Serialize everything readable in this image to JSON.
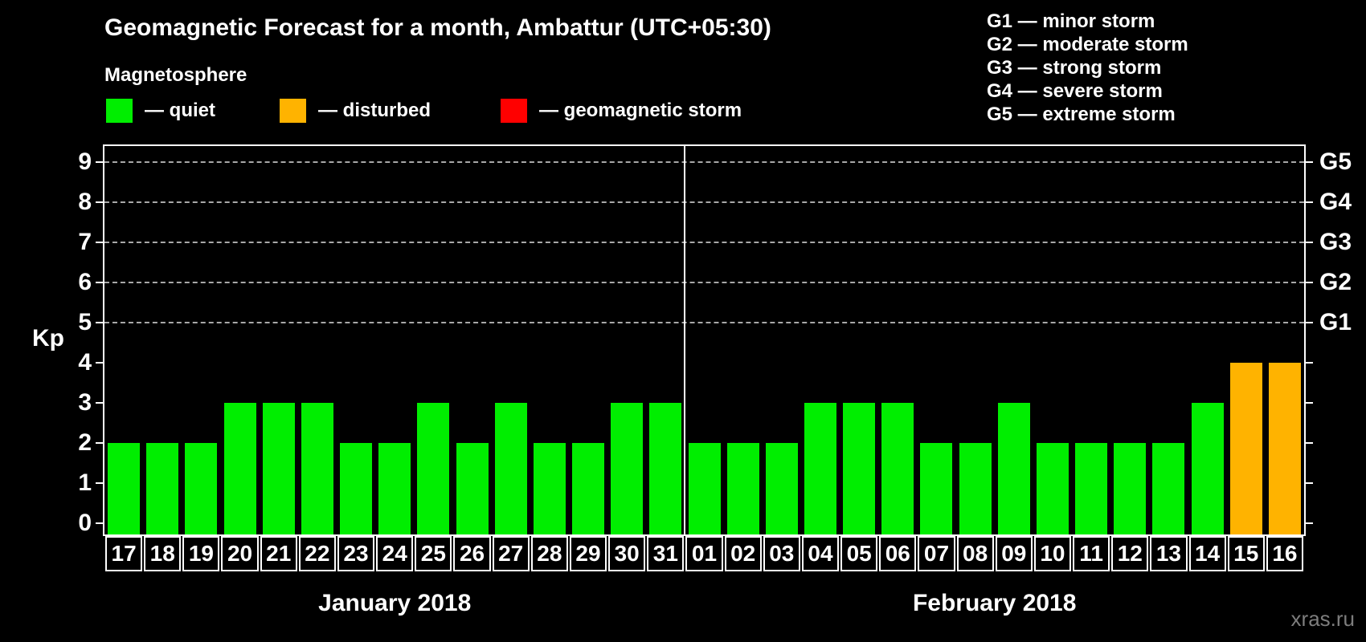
{
  "header": {
    "title": "Geomagnetic Forecast for a month, Ambattur (UTC+05:30)",
    "subtitle": "Magnetosphere"
  },
  "legend": {
    "items": [
      {
        "key": "quiet",
        "label": "— quiet",
        "color": "#00ee00"
      },
      {
        "key": "disturbed",
        "label": "— disturbed",
        "color": "#ffb300"
      },
      {
        "key": "storm",
        "label": "— geomagnetic storm",
        "color": "#ff0000"
      }
    ]
  },
  "g_scale_legend": {
    "items": [
      "G1 — minor storm",
      "G2 — moderate storm",
      "G3 — strong storm",
      "G4 — severe storm",
      "G5 — extreme storm"
    ]
  },
  "watermark": "xras.ru",
  "chart_data": {
    "type": "bar",
    "title": "Geomagnetic Forecast for a month, Ambattur (UTC+05:30)",
    "ylabel": "Kp",
    "ylim": [
      0,
      9
    ],
    "y_ticks": [
      0,
      1,
      2,
      3,
      4,
      5,
      6,
      7,
      8,
      9
    ],
    "gridlines_at": [
      5,
      6,
      7,
      8,
      9
    ],
    "grid": "dashed horizontal lines at storm levels only",
    "legend_position": "top",
    "right_axis": [
      {
        "label": "G1",
        "kp": 5
      },
      {
        "label": "G2",
        "kp": 6
      },
      {
        "label": "G3",
        "kp": 7
      },
      {
        "label": "G4",
        "kp": 8
      },
      {
        "label": "G5",
        "kp": 9
      }
    ],
    "status_colors": {
      "quiet": "#00ee00",
      "disturbed": "#ffb300",
      "storm": "#ff0000"
    },
    "months": [
      {
        "name": "January 2018",
        "days": [
          "17",
          "18",
          "19",
          "20",
          "21",
          "22",
          "23",
          "24",
          "25",
          "26",
          "27",
          "28",
          "29",
          "30",
          "31"
        ],
        "kp": [
          2,
          2,
          2,
          3,
          3,
          3,
          2,
          2,
          3,
          2,
          3,
          2,
          2,
          3,
          3
        ],
        "status": [
          "quiet",
          "quiet",
          "quiet",
          "quiet",
          "quiet",
          "quiet",
          "quiet",
          "quiet",
          "quiet",
          "quiet",
          "quiet",
          "quiet",
          "quiet",
          "quiet",
          "quiet"
        ]
      },
      {
        "name": "February 2018",
        "days": [
          "01",
          "02",
          "03",
          "04",
          "05",
          "06",
          "07",
          "08",
          "09",
          "10",
          "11",
          "12",
          "13",
          "14",
          "15",
          "16"
        ],
        "kp": [
          2,
          2,
          2,
          3,
          3,
          3,
          2,
          2,
          3,
          2,
          2,
          2,
          2,
          3,
          4,
          4
        ],
        "status": [
          "quiet",
          "quiet",
          "quiet",
          "quiet",
          "quiet",
          "quiet",
          "quiet",
          "quiet",
          "quiet",
          "quiet",
          "quiet",
          "quiet",
          "quiet",
          "quiet",
          "disturbed",
          "disturbed"
        ]
      }
    ]
  }
}
